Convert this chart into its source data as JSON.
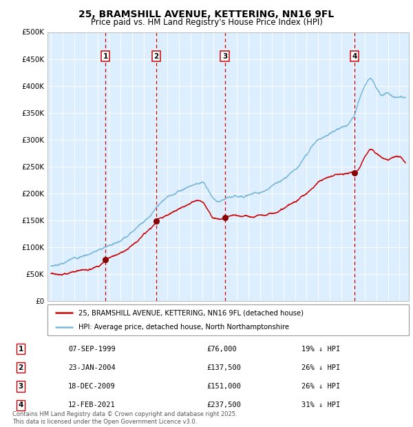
{
  "title": "25, BRAMSHILL AVENUE, KETTERING, NN16 9FL",
  "subtitle": "Price paid vs. HM Land Registry's House Price Index (HPI)",
  "legend_line1": "25, BRAMSHILL AVENUE, KETTERING, NN16 9FL (detached house)",
  "legend_line2": "HPI: Average price, detached house, North Northamptonshire",
  "footer_line1": "Contains HM Land Registry data © Crown copyright and database right 2025.",
  "footer_line2": "This data is licensed under the Open Government Licence v3.0.",
  "sales": [
    {
      "num": 1,
      "price": 76000,
      "x_year": 1999.685
    },
    {
      "num": 2,
      "price": 137500,
      "x_year": 2004.062
    },
    {
      "num": 3,
      "price": 151000,
      "x_year": 2009.962
    },
    {
      "num": 4,
      "price": 237500,
      "x_year": 2021.115
    }
  ],
  "table_rows": [
    {
      "num": 1,
      "date_str": "07-SEP-1999",
      "price_str": "£76,000",
      "note": "19% ↓ HPI"
    },
    {
      "num": 2,
      "date_str": "23-JAN-2004",
      "price_str": "£137,500",
      "note": "26% ↓ HPI"
    },
    {
      "num": 3,
      "date_str": "18-DEC-2009",
      "price_str": "£151,000",
      "note": "26% ↓ HPI"
    },
    {
      "num": 4,
      "date_str": "12-FEB-2021",
      "price_str": "£237,500",
      "note": "31% ↓ HPI"
    }
  ],
  "hpi_color": "#7ab8d9",
  "price_color": "#cc0000",
  "vline_color": "#cc0000",
  "bg_color": "#ddeeff",
  "grid_color": "#ffffff",
  "marker_color": "#880000",
  "box_edge_color": "#cc0000",
  "ylim": [
    0,
    500000
  ],
  "yticks": [
    0,
    50000,
    100000,
    150000,
    200000,
    250000,
    300000,
    350000,
    400000,
    450000,
    500000
  ],
  "xlim_start": 1994.7,
  "xlim_end": 2025.8,
  "hpi_curve_points": {
    "years": [
      1995,
      1996,
      1997,
      1998,
      1999,
      2000,
      2001,
      2002,
      2003,
      2004,
      2005,
      2006,
      2007,
      2008,
      2008.5,
      2009,
      2009.5,
      2010,
      2011,
      2012,
      2013,
      2014,
      2015,
      2016,
      2017,
      2018,
      2019,
      2020,
      2021,
      2021.5,
      2022,
      2022.5,
      2023,
      2023.5,
      2024,
      2024.5,
      2025
    ],
    "values": [
      65000,
      72000,
      80000,
      88000,
      97000,
      107000,
      120000,
      140000,
      162000,
      185000,
      204000,
      218000,
      230000,
      238000,
      225000,
      208000,
      200000,
      202000,
      205000,
      210000,
      215000,
      225000,
      238000,
      258000,
      285000,
      310000,
      325000,
      335000,
      355000,
      390000,
      420000,
      435000,
      420000,
      405000,
      410000,
      405000,
      405000
    ]
  },
  "price_curve_points": {
    "years": [
      1995,
      1996,
      1997,
      1998,
      1999,
      1999.685,
      2000,
      2001,
      2002,
      2003,
      2004,
      2004.062,
      2005,
      2005.5,
      2006,
      2006.5,
      2007,
      2007.5,
      2008,
      2008.5,
      2009,
      2009.5,
      2009.962,
      2010,
      2011,
      2012,
      2013,
      2014,
      2015,
      2016,
      2017,
      2018,
      2019,
      2020,
      2021,
      2021.115,
      2022,
      2022.5,
      2023,
      2023.5,
      2024,
      2024.5,
      2025
    ],
    "values": [
      51000,
      53000,
      56000,
      60000,
      64000,
      76000,
      80000,
      87000,
      98000,
      117000,
      134000,
      137500,
      148000,
      155000,
      162000,
      168000,
      173000,
      178000,
      176000,
      162000,
      148000,
      148000,
      151000,
      152000,
      155000,
      155000,
      158000,
      165000,
      174000,
      188000,
      205000,
      222000,
      232000,
      237000,
      240000,
      237500,
      268000,
      283000,
      278000,
      270000,
      265000,
      272000,
      270000
    ]
  }
}
